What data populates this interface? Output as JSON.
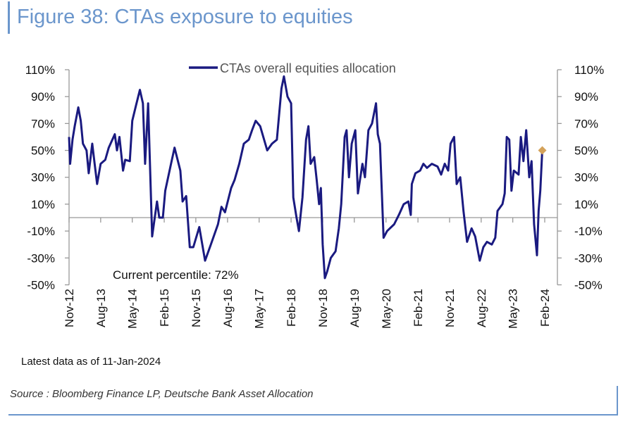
{
  "title": "Figure 38: CTAs exposure to equities",
  "note": "Latest data as of 11-Jan-2024",
  "source": "Source : Bloomberg Finance LP, Deutsche Bank Asset Allocation",
  "annotation": "Current percentile: 72%",
  "colors": {
    "title": "#6b96cc",
    "series": "#1a1a80",
    "marker": "#d4a25a",
    "axis": "#999999"
  },
  "chart_data": {
    "type": "line",
    "title": "",
    "xlabel": "",
    "ylabel": "",
    "ylim": [
      -50,
      110
    ],
    "y_ticks": [
      "110%",
      "90%",
      "70%",
      "50%",
      "30%",
      "10%",
      "-10%",
      "-30%",
      "-50%"
    ],
    "y_tick_values": [
      110,
      90,
      70,
      50,
      30,
      10,
      -10,
      -30,
      -50
    ],
    "secondary_y_axis": true,
    "x_tick_labels": [
      "Nov-12",
      "Aug-13",
      "May-14",
      "Feb-15",
      "Nov-15",
      "Aug-16",
      "May-17",
      "Feb-18",
      "Nov-18",
      "Aug-19",
      "May-20",
      "Feb-21",
      "Nov-21",
      "Aug-22",
      "May-23",
      "Feb-24"
    ],
    "x_tick_dates": [
      "2012-11-01",
      "2013-08-01",
      "2014-05-01",
      "2015-02-01",
      "2015-11-01",
      "2016-08-01",
      "2017-05-01",
      "2018-02-01",
      "2018-11-01",
      "2019-08-01",
      "2020-05-01",
      "2021-02-01",
      "2021-11-01",
      "2022-08-01",
      "2023-05-01",
      "2024-02-01"
    ],
    "grid": false,
    "legend_placement": "top-center",
    "series": [
      {
        "name": "CTAs overall equities allocation",
        "x": [
          "2012-11-01",
          "2012-11-10",
          "2012-12-01",
          "2012-12-20",
          "2013-01-20",
          "2013-02-10",
          "2013-03-01",
          "2013-04-01",
          "2013-04-20",
          "2013-05-20",
          "2013-06-10",
          "2013-07-01",
          "2013-08-01",
          "2013-09-10",
          "2013-10-10",
          "2013-12-01",
          "2013-12-20",
          "2014-01-10",
          "2014-02-10",
          "2014-03-01",
          "2014-04-10",
          "2014-05-01",
          "2014-06-01",
          "2014-07-06",
          "2014-08-01",
          "2014-08-20",
          "2014-09-15",
          "2014-10-20",
          "2014-12-01",
          "2014-12-20",
          "2015-01-20",
          "2015-02-10",
          "2015-04-01",
          "2015-05-01",
          "2015-06-20",
          "2015-07-10",
          "2015-08-10",
          "2015-09-10",
          "2015-10-10",
          "2015-12-01",
          "2016-01-20",
          "2016-03-10",
          "2016-05-10",
          "2016-06-10",
          "2016-07-10",
          "2016-09-01",
          "2016-10-01",
          "2016-11-10",
          "2016-12-20",
          "2017-02-01",
          "2017-03-01",
          "2017-04-01",
          "2017-05-10",
          "2017-07-10",
          "2017-08-20",
          "2017-10-01",
          "2017-11-10",
          "2017-12-01",
          "2018-01-01",
          "2018-02-01",
          "2018-02-20",
          "2018-03-20",
          "2018-04-10",
          "2018-05-10",
          "2018-06-10",
          "2018-07-01",
          "2018-07-20",
          "2018-08-20",
          "2018-09-10",
          "2018-10-01",
          "2018-10-16",
          "2018-11-01",
          "2018-11-20",
          "2018-12-10",
          "2019-01-10",
          "2019-02-20",
          "2019-03-20",
          "2019-04-10",
          "2019-05-10",
          "2019-05-26",
          "2019-06-16",
          "2019-07-10",
          "2019-08-10",
          "2019-09-01",
          "2019-10-10",
          "2019-11-01",
          "2019-12-01",
          "2020-01-01",
          "2020-02-05",
          "2020-02-20",
          "2020-03-10",
          "2020-04-10",
          "2020-05-10",
          "2020-07-10",
          "2020-08-20",
          "2020-10-01",
          "2020-11-10",
          "2020-12-01",
          "2020-12-10",
          "2021-01-10",
          "2021-02-20",
          "2021-03-20",
          "2021-04-20",
          "2021-06-01",
          "2021-07-20",
          "2021-08-20",
          "2021-09-20",
          "2021-10-20",
          "2021-11-10",
          "2021-12-10",
          "2022-01-01",
          "2022-02-01",
          "2022-03-01",
          "2022-04-01",
          "2022-05-10",
          "2022-06-10",
          "2022-07-20",
          "2022-08-20",
          "2022-09-20",
          "2022-11-01",
          "2022-12-01",
          "2022-12-20",
          "2023-02-01",
          "2023-02-20",
          "2023-03-10",
          "2023-04-01",
          "2023-04-20",
          "2023-05-10",
          "2023-06-20",
          "2023-07-10",
          "2023-08-01",
          "2023-08-25",
          "2023-09-20",
          "2023-10-10",
          "2023-11-01",
          "2023-11-26",
          "2023-12-10",
          "2023-12-25",
          "2024-01-11"
        ],
        "values": [
          60,
          40,
          58,
          68,
          82,
          72,
          55,
          50,
          33,
          55,
          40,
          25,
          40,
          43,
          52,
          62,
          50,
          60,
          35,
          43,
          42,
          72,
          83,
          95,
          85,
          40,
          85,
          -14,
          12,
          0,
          0,
          20,
          40,
          52,
          35,
          12,
          16,
          -22,
          -22,
          -7,
          -32,
          -20,
          -5,
          8,
          4,
          22,
          28,
          40,
          55,
          58,
          65,
          72,
          68,
          50,
          55,
          58,
          96,
          105,
          90,
          85,
          15,
          0,
          -10,
          15,
          58,
          68,
          40,
          45,
          28,
          10,
          22,
          -20,
          -45,
          -40,
          -30,
          -25,
          -8,
          10,
          60,
          65,
          30,
          55,
          65,
          18,
          40,
          30,
          65,
          70,
          85,
          62,
          55,
          -15,
          -10,
          -5,
          2,
          10,
          12,
          2,
          25,
          33,
          35,
          40,
          37,
          40,
          38,
          32,
          40,
          35,
          55,
          60,
          25,
          30,
          5,
          -18,
          -8,
          -14,
          -32,
          -22,
          -18,
          -20,
          -15,
          5,
          10,
          18,
          60,
          58,
          20,
          35,
          32,
          60,
          42,
          65,
          30,
          42,
          -5,
          -28,
          5,
          20,
          50
        ]
      }
    ],
    "latest_marker": {
      "x": "2024-01-11",
      "value": 50
    }
  }
}
